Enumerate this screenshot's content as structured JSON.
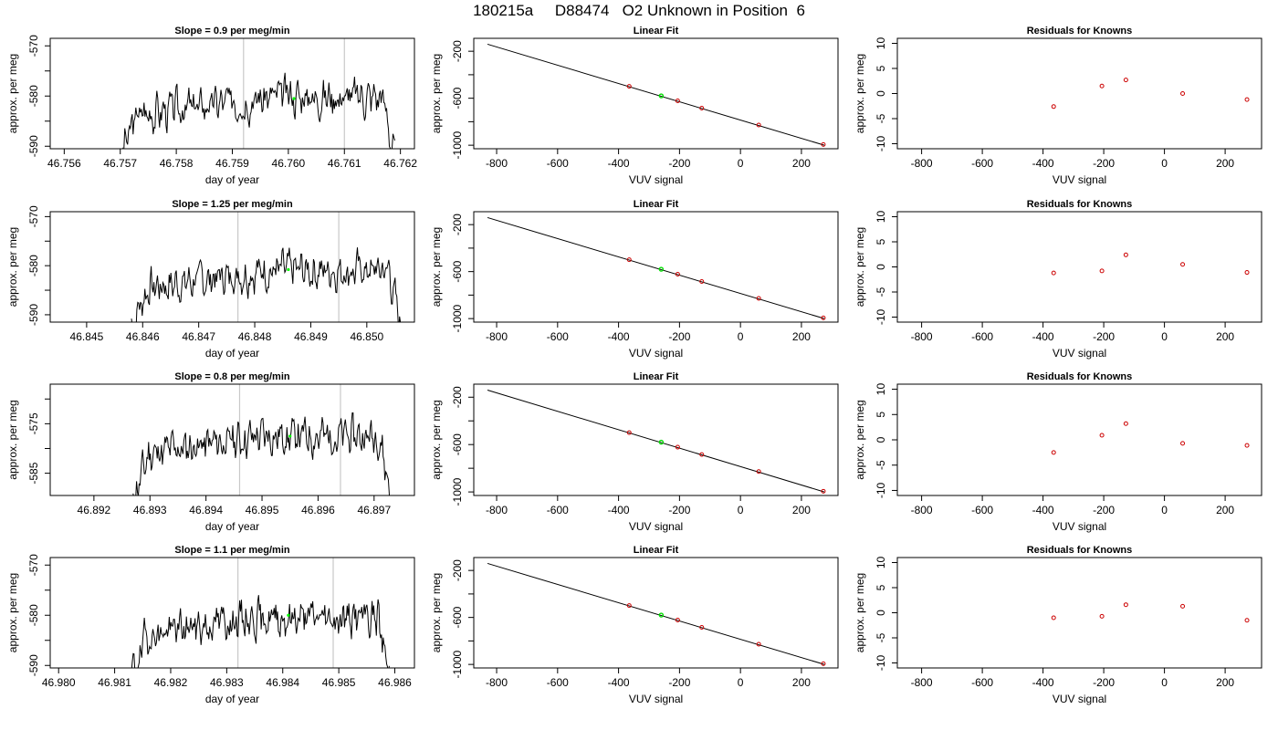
{
  "title": "180215a     D88474   O2 Unknown in Position  6",
  "chart_data": [
    {
      "type": "line",
      "panel": "time-series",
      "row": 1,
      "title": "Slope =  0.9  per meg/min",
      "xlabel": "day of year",
      "ylabel": "approx. per meg",
      "xlim": [
        46.75575,
        46.76225
      ],
      "ylim": [
        -590.5,
        -568.5
      ],
      "xticks": [
        "46.756",
        "46.757",
        "46.758",
        "46.759",
        "46.760",
        "46.761",
        "46.762"
      ],
      "yticks": [
        "-590",
        "-580",
        "-570"
      ],
      "yminor": [
        -585,
        -575
      ],
      "start": 46.757,
      "end": 46.7619,
      "mean": -584,
      "t_up": 46.7598,
      "end_level": -592,
      "vlines": [
        46.7592,
        46.761
      ],
      "marker": {
        "x": 46.7601,
        "y": -580.5
      },
      "seed": 3
    },
    {
      "type": "line",
      "panel": "linear-fit",
      "row": 1,
      "title": "Linear Fit",
      "xlabel": "VUV signal",
      "ylabel": "approx. per meg",
      "xlim": [
        -875,
        320
      ],
      "ylim": [
        -1030,
        -90
      ],
      "xticks": [
        "-800",
        "-600",
        "-400",
        "-200",
        "0",
        "200"
      ],
      "yticks": [
        "-1000",
        "-600",
        "-200"
      ],
      "yminor": [
        -800,
        -400
      ],
      "fit_x": [
        -830,
        275
      ],
      "fit_y": [
        -140,
        -1000
      ],
      "series": {
        "name": "knowns",
        "x": [
          -365,
          -206,
          -127,
          60,
          272
        ],
        "y": [
          -499,
          -622,
          -684,
          -828,
          -994
        ]
      },
      "unknown": {
        "x": -260,
        "y": -580
      }
    },
    {
      "type": "scatter",
      "panel": "residuals",
      "row": 1,
      "title": "Residuals for Knowns",
      "xlabel": "VUV signal",
      "ylabel": "approx. per meg",
      "xlim": [
        -880,
        320
      ],
      "ylim": [
        -11,
        11
      ],
      "xticks": [
        "-800",
        "-600",
        "-400",
        "-200",
        "0",
        "200"
      ],
      "yticks": [
        "-10",
        "-5",
        "0",
        "5",
        "10"
      ],
      "series": {
        "name": "residuals",
        "x": [
          -365,
          -206,
          -127,
          60,
          272
        ],
        "y": [
          -2.6,
          1.5,
          2.7,
          0.0,
          -1.2
        ]
      }
    },
    {
      "type": "line",
      "panel": "time-series",
      "row": 2,
      "title": "Slope =  1.25  per meg/min",
      "xlabel": "day of year",
      "ylabel": "approx. per meg",
      "xlim": [
        46.84435,
        46.85085
      ],
      "ylim": [
        -591.5,
        -569
      ],
      "xticks": [
        "46.845",
        "46.846",
        "46.847",
        "46.848",
        "46.849",
        "46.850"
      ],
      "yticks": [
        "-590",
        "-580",
        "-570"
      ],
      "yminor": [
        -585,
        -575
      ],
      "start": 46.8458,
      "end": 46.8506,
      "mean": -585,
      "t_up": 46.8482,
      "end_level": -592,
      "vlines": [
        46.8477,
        46.8495
      ],
      "marker": {
        "x": 46.8486,
        "y": -580.8
      },
      "seed": 7
    },
    {
      "type": "line",
      "panel": "linear-fit",
      "row": 2,
      "title": "Linear Fit",
      "xlabel": "VUV signal",
      "ylabel": "approx. per meg",
      "xlim": [
        -875,
        320
      ],
      "ylim": [
        -1030,
        -90
      ],
      "xticks": [
        "-800",
        "-600",
        "-400",
        "-200",
        "0",
        "200"
      ],
      "yticks": [
        "-1000",
        "-600",
        "-200"
      ],
      "yminor": [
        -800,
        -400
      ],
      "fit_x": [
        -830,
        275
      ],
      "fit_y": [
        -140,
        -1000
      ],
      "series": {
        "name": "knowns",
        "x": [
          -365,
          -206,
          -127,
          60,
          272
        ],
        "y": [
          -499,
          -622,
          -684,
          -828,
          -994
        ]
      },
      "unknown": {
        "x": -260,
        "y": -580
      }
    },
    {
      "type": "scatter",
      "panel": "residuals",
      "row": 2,
      "title": "Residuals for Knowns",
      "xlabel": "VUV signal",
      "ylabel": "approx. per meg",
      "xlim": [
        -880,
        320
      ],
      "ylim": [
        -11,
        11
      ],
      "xticks": [
        "-800",
        "-600",
        "-400",
        "-200",
        "0",
        "200"
      ],
      "yticks": [
        "-10",
        "-5",
        "0",
        "5",
        "10"
      ],
      "series": {
        "name": "residuals",
        "x": [
          -365,
          -206,
          -127,
          60,
          272
        ],
        "y": [
          -1.2,
          -0.8,
          2.4,
          0.5,
          -1.1
        ]
      }
    },
    {
      "type": "line",
      "panel": "time-series",
      "row": 3,
      "title": "Slope =  0.8  per meg/min",
      "xlabel": "day of year",
      "ylabel": "approx. per meg",
      "xlim": [
        46.89122,
        46.89772
      ],
      "ylim": [
        -589.5,
        -567
      ],
      "xticks": [
        "46.892",
        "46.893",
        "46.894",
        "46.895",
        "46.896",
        "46.897"
      ],
      "yticks": [
        "-585",
        "-575"
      ],
      "yminor": [
        -580,
        -570
      ],
      "start": 46.8927,
      "end": 46.8973,
      "mean": -581.5,
      "t_up": 46.895,
      "end_level": -590,
      "vlines": [
        46.8946,
        46.8964
      ],
      "marker": {
        "x": 46.8955,
        "y": -577.5
      },
      "seed": 11
    },
    {
      "type": "line",
      "panel": "linear-fit",
      "row": 3,
      "title": "Linear Fit",
      "xlabel": "VUV signal",
      "ylabel": "approx. per meg",
      "xlim": [
        -875,
        320
      ],
      "ylim": [
        -1030,
        -90
      ],
      "xticks": [
        "-800",
        "-600",
        "-400",
        "-200",
        "0",
        "200"
      ],
      "yticks": [
        "-1000",
        "-600",
        "-200"
      ],
      "yminor": [
        -800,
        -400
      ],
      "fit_x": [
        -830,
        275
      ],
      "fit_y": [
        -140,
        -1000
      ],
      "series": {
        "name": "knowns",
        "x": [
          -365,
          -206,
          -127,
          60,
          272
        ],
        "y": [
          -499,
          -622,
          -684,
          -828,
          -994
        ]
      },
      "unknown": {
        "x": -260,
        "y": -580
      }
    },
    {
      "type": "scatter",
      "panel": "residuals",
      "row": 3,
      "title": "Residuals for Knowns",
      "xlabel": "VUV signal",
      "ylabel": "approx. per meg",
      "xlim": [
        -880,
        320
      ],
      "ylim": [
        -11,
        11
      ],
      "xticks": [
        "-800",
        "-600",
        "-400",
        "-200",
        "0",
        "200"
      ],
      "yticks": [
        "-10",
        "-5",
        "0",
        "5",
        "10"
      ],
      "series": {
        "name": "residuals",
        "x": [
          -365,
          -206,
          -127,
          60,
          272
        ],
        "y": [
          -2.5,
          0.9,
          3.2,
          -0.7,
          -1.1
        ]
      }
    },
    {
      "type": "line",
      "panel": "time-series",
      "row": 4,
      "title": "Slope =  1.1  per meg/min",
      "xlabel": "day of year",
      "ylabel": "approx. per meg",
      "xlim": [
        46.97985,
        46.98635
      ],
      "ylim": [
        -590.5,
        -568.5
      ],
      "xticks": [
        "46.980",
        "46.981",
        "46.982",
        "46.983",
        "46.984",
        "46.985",
        "46.986"
      ],
      "yticks": [
        "-590",
        "-580",
        "-570"
      ],
      "yminor": [
        -585,
        -575
      ],
      "start": 46.9813,
      "end": 46.9859,
      "mean": -584.5,
      "t_up": 46.9834,
      "end_level": -592,
      "vlines": [
        46.9832,
        46.9849
      ],
      "marker": {
        "x": 46.9841,
        "y": -580
      },
      "seed": 19
    },
    {
      "type": "line",
      "panel": "linear-fit",
      "row": 4,
      "title": "Linear Fit",
      "xlabel": "VUV signal",
      "ylabel": "approx. per meg",
      "xlim": [
        -875,
        320
      ],
      "ylim": [
        -1030,
        -90
      ],
      "xticks": [
        "-800",
        "-600",
        "-400",
        "-200",
        "0",
        "200"
      ],
      "yticks": [
        "-1000",
        "-600",
        "-200"
      ],
      "yminor": [
        -800,
        -400
      ],
      "fit_x": [
        -830,
        275
      ],
      "fit_y": [
        -140,
        -1000
      ],
      "series": {
        "name": "knowns",
        "x": [
          -365,
          -206,
          -127,
          60,
          272
        ],
        "y": [
          -499,
          -622,
          -684,
          -828,
          -994
        ]
      },
      "unknown": {
        "x": -260,
        "y": -580
      }
    },
    {
      "type": "scatter",
      "panel": "residuals",
      "row": 4,
      "title": "Residuals for Knowns",
      "xlabel": "VUV signal",
      "ylabel": "approx. per meg",
      "xlim": [
        -880,
        320
      ],
      "ylim": [
        -11,
        11
      ],
      "xticks": [
        "-800",
        "-600",
        "-400",
        "-200",
        "0",
        "200"
      ],
      "yticks": [
        "-10",
        "-5",
        "0",
        "5",
        "10"
      ],
      "series": {
        "name": "residuals",
        "x": [
          -365,
          -206,
          -127,
          60,
          272
        ],
        "y": [
          -1.0,
          -0.7,
          1.6,
          1.3,
          -1.5
        ]
      }
    }
  ]
}
